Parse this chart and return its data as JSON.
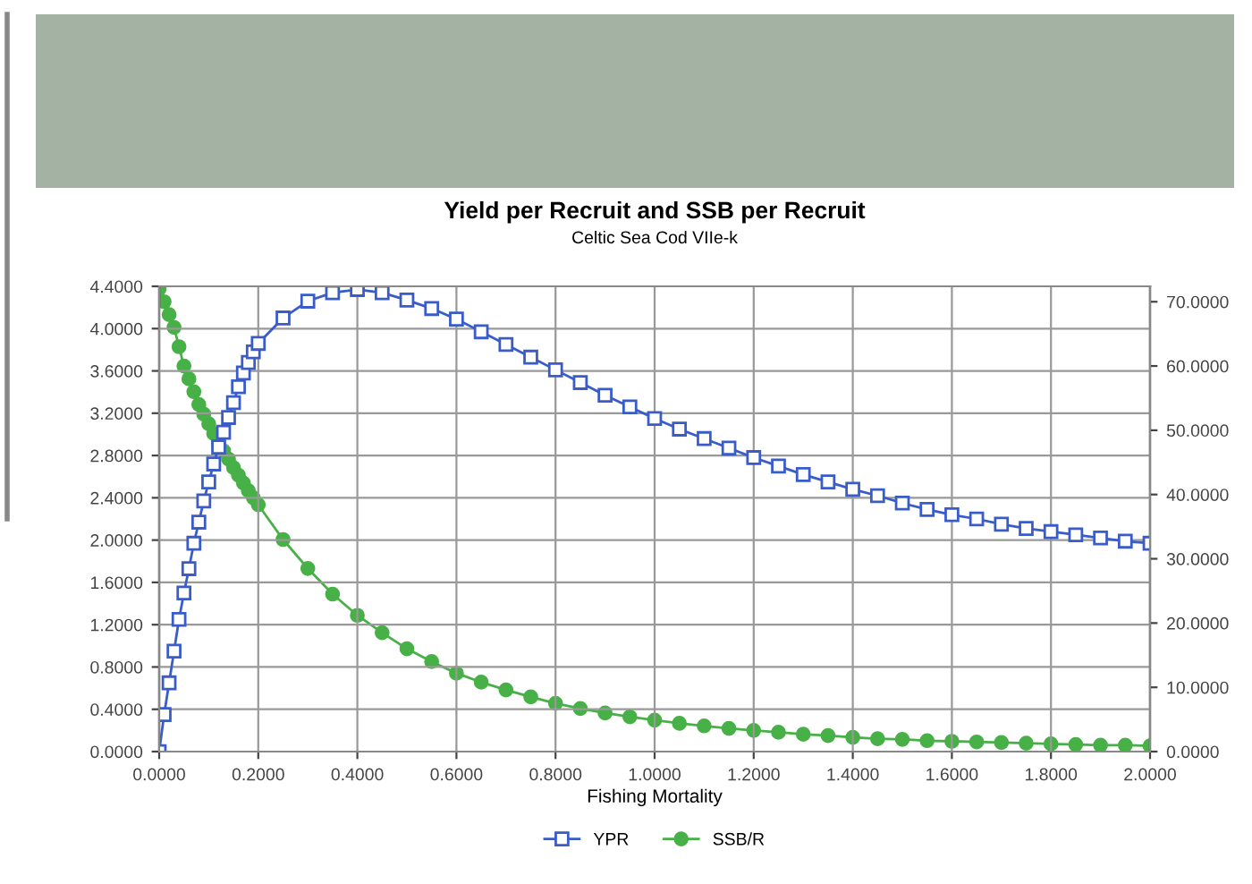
{
  "chart_data": {
    "type": "line",
    "title": "Yield per Recruit and SSB per Recruit",
    "subtitle": "Celtic Sea Cod VIIe-k",
    "xlabel": "Fishing Mortality",
    "x": [
      0,
      0.01,
      0.02,
      0.03,
      0.04,
      0.05,
      0.06,
      0.07,
      0.08,
      0.09,
      0.1,
      0.11,
      0.12,
      0.13,
      0.14,
      0.15,
      0.16,
      0.17,
      0.18,
      0.19,
      0.2,
      0.25,
      0.3,
      0.35,
      0.4,
      0.45,
      0.5,
      0.55,
      0.6,
      0.65,
      0.7,
      0.75,
      0.8,
      0.85,
      0.9,
      0.95,
      1.0,
      1.05,
      1.1,
      1.15,
      1.2,
      1.25,
      1.3,
      1.35,
      1.4,
      1.45,
      1.5,
      1.55,
      1.6,
      1.65,
      1.7,
      1.75,
      1.8,
      1.85,
      1.9,
      1.95,
      2.0
    ],
    "series": [
      {
        "name": "YPR",
        "color": "#3a5cc8",
        "marker": "square",
        "values": [
          0,
          0.35,
          0.65,
          0.95,
          1.25,
          1.5,
          1.73,
          1.97,
          2.17,
          2.37,
          2.55,
          2.72,
          2.88,
          3.02,
          3.16,
          3.3,
          3.45,
          3.58,
          3.68,
          3.78,
          3.86,
          4.1,
          4.26,
          4.34,
          4.37,
          4.34,
          4.27,
          4.19,
          4.09,
          3.97,
          3.85,
          3.73,
          3.61,
          3.49,
          3.37,
          3.26,
          3.15,
          3.05,
          2.96,
          2.87,
          2.78,
          2.7,
          2.62,
          2.55,
          2.48,
          2.42,
          2.35,
          2.29,
          2.24,
          2.2,
          2.15,
          2.11,
          2.08,
          2.05,
          2.02,
          1.99,
          1.97
        ]
      },
      {
        "name": "SSB/R",
        "color": "#47b047",
        "marker": "circle",
        "axis": "y2",
        "values": [
          72.0,
          70.0,
          68.0,
          66.0,
          63.0,
          60.0,
          58.0,
          56.0,
          54.0,
          52.5,
          51.0,
          49.5,
          48.0,
          46.8,
          45.5,
          44.2,
          43.0,
          41.8,
          40.6,
          39.5,
          38.4,
          33.0,
          28.5,
          24.5,
          21.2,
          18.5,
          16.0,
          14.0,
          12.2,
          10.8,
          9.6,
          8.5,
          7.5,
          6.7,
          6.0,
          5.4,
          4.9,
          4.4,
          4.0,
          3.6,
          3.3,
          3.0,
          2.7,
          2.5,
          2.2,
          2.0,
          1.9,
          1.7,
          1.6,
          1.5,
          1.4,
          1.3,
          1.2,
          1.1,
          1.0,
          1.0,
          0.9
        ]
      }
    ],
    "xlim": [
      0,
      2.0
    ],
    "xticks": [
      {
        "value": 0,
        "label": "0.0000"
      },
      {
        "value": 0.2,
        "label": "0.2000"
      },
      {
        "value": 0.4,
        "label": "0.4000"
      },
      {
        "value": 0.6,
        "label": "0.6000"
      },
      {
        "value": 0.8,
        "label": "0.8000"
      },
      {
        "value": 1.0,
        "label": "1.0000"
      },
      {
        "value": 1.2,
        "label": "1.2000"
      },
      {
        "value": 1.4,
        "label": "1.4000"
      },
      {
        "value": 1.6,
        "label": "1.6000"
      },
      {
        "value": 1.8,
        "label": "1.8000"
      },
      {
        "value": 2.0,
        "label": "2.0000"
      }
    ],
    "ylim": [
      0,
      4.4
    ],
    "yticks": [
      {
        "value": 0,
        "label": "0.0000"
      },
      {
        "value": 0.4,
        "label": "0.4000"
      },
      {
        "value": 0.8,
        "label": "0.8000"
      },
      {
        "value": 1.2,
        "label": "1.2000"
      },
      {
        "value": 1.6,
        "label": "1.6000"
      },
      {
        "value": 2.0,
        "label": "2.0000"
      },
      {
        "value": 2.4,
        "label": "2.4000"
      },
      {
        "value": 2.8,
        "label": "2.8000"
      },
      {
        "value": 3.2,
        "label": "3.2000"
      },
      {
        "value": 3.6,
        "label": "3.6000"
      },
      {
        "value": 4.0,
        "label": "4.0000"
      },
      {
        "value": 4.4,
        "label": "4.4000"
      }
    ],
    "y2lim": [
      0,
      72.4
    ],
    "y2ticks": [
      {
        "value": 0,
        "label": "0.0000"
      },
      {
        "value": 10,
        "label": "10.0000"
      },
      {
        "value": 20,
        "label": "20.0000"
      },
      {
        "value": 30,
        "label": "30.0000"
      },
      {
        "value": 40,
        "label": "40.0000"
      },
      {
        "value": 50,
        "label": "50.0000"
      },
      {
        "value": 60,
        "label": "60.0000"
      },
      {
        "value": 70,
        "label": "70.0000"
      }
    ],
    "grid": true,
    "legend": "bottom",
    "line_style": "solid"
  }
}
